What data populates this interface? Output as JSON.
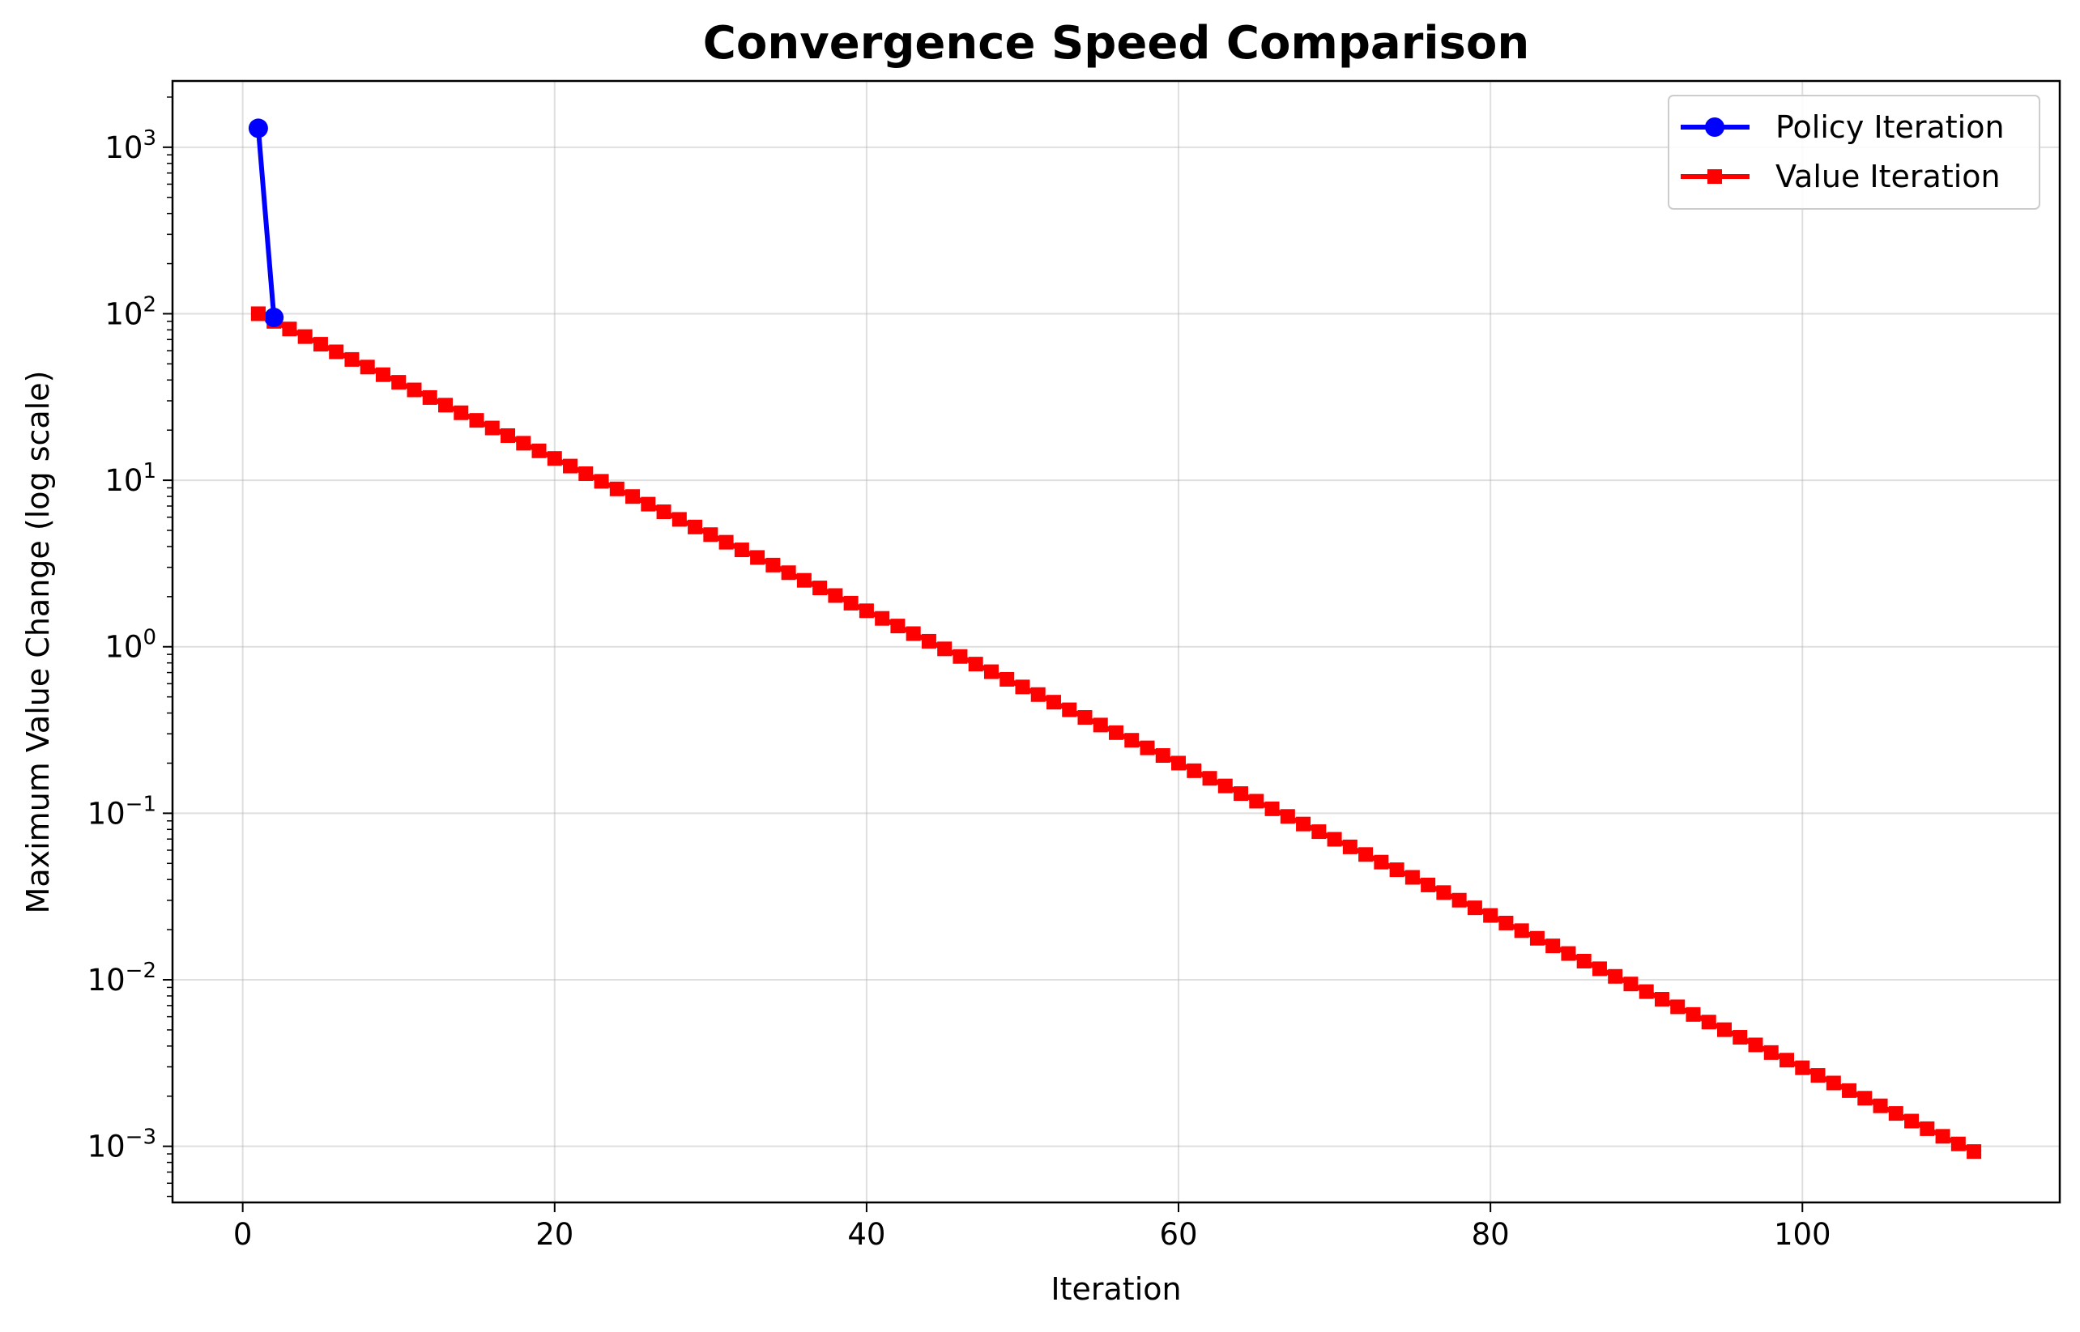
{
  "chart_data": {
    "type": "line",
    "title": "Convergence Speed Comparison",
    "xlabel": "Iteration",
    "ylabel": "Maximum Value Change (log scale)",
    "xlim": [
      -4.5,
      116.5
    ],
    "ylim": [
      0.00046,
      2500
    ],
    "yscale": "log",
    "grid": true,
    "legend_position": "top-right",
    "x_ticks": [
      0,
      20,
      40,
      60,
      80,
      100
    ],
    "y_ticks": [
      {
        "value": 0.001,
        "base": "10",
        "exp": "−3"
      },
      {
        "value": 0.01,
        "base": "10",
        "exp": "−2"
      },
      {
        "value": 0.1,
        "base": "10",
        "exp": "−1"
      },
      {
        "value": 1,
        "base": "10",
        "exp": "0"
      },
      {
        "value": 10,
        "base": "10",
        "exp": "1"
      },
      {
        "value": 100,
        "base": "10",
        "exp": "2"
      },
      {
        "value": 1000,
        "base": "10",
        "exp": "3"
      }
    ],
    "series": [
      {
        "name": "Policy Iteration",
        "color": "#0000ff",
        "marker": "circle",
        "x": [
          1,
          2
        ],
        "y": [
          1300,
          95
        ]
      },
      {
        "name": "Value Iteration",
        "color": "#ff0000",
        "marker": "square",
        "x_start": 1,
        "x_end": 111,
        "y_start": 100,
        "y_end": 0.00093
      }
    ]
  }
}
